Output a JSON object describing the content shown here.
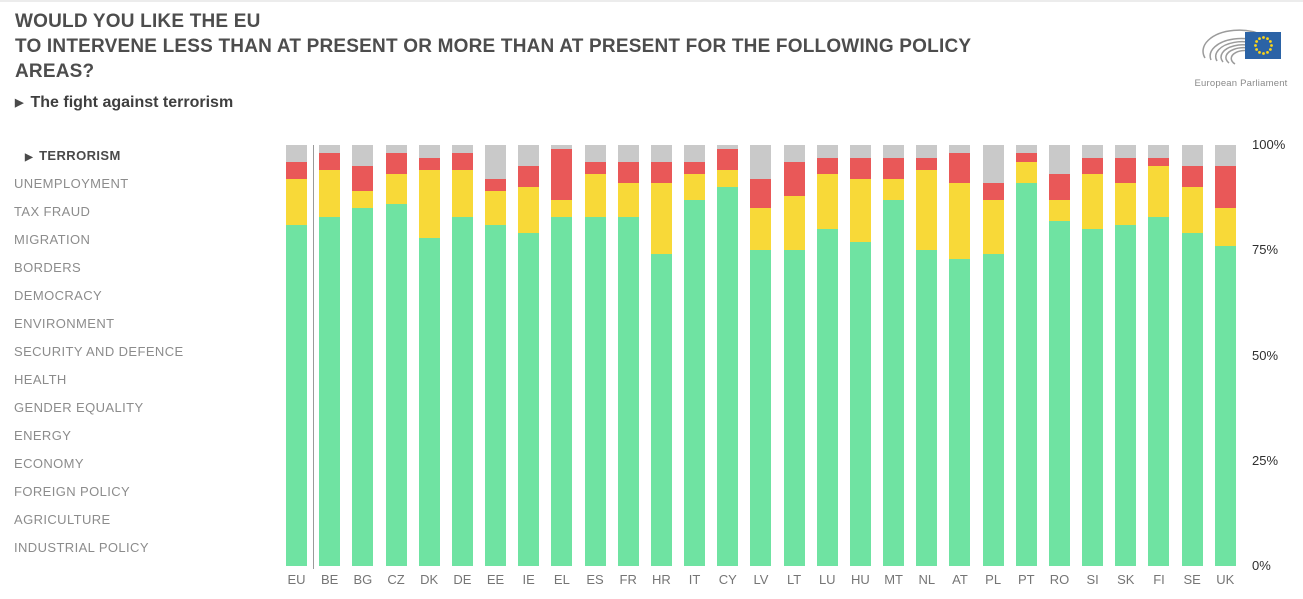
{
  "header": {
    "title_lines": [
      "WOULD YOU LIKE THE EU",
      "TO INTERVENE LESS THAN AT PRESENT OR MORE THAN AT PRESENT FOR THE FOLLOWING POLICY",
      "AREAS?"
    ],
    "subtitle": "The fight against terrorism"
  },
  "logo": {
    "caption": "European Parliament"
  },
  "sidebar": {
    "items": [
      {
        "label": "TERRORISM",
        "active": true
      },
      {
        "label": "UNEMPLOYMENT",
        "active": false
      },
      {
        "label": "TAX FRAUD",
        "active": false
      },
      {
        "label": "MIGRATION",
        "active": false
      },
      {
        "label": "BORDERS",
        "active": false
      },
      {
        "label": "DEMOCRACY",
        "active": false
      },
      {
        "label": "ENVIRONMENT",
        "active": false
      },
      {
        "label": "SECURITY AND DEFENCE",
        "active": false
      },
      {
        "label": "HEALTH",
        "active": false
      },
      {
        "label": "GENDER EQUALITY",
        "active": false
      },
      {
        "label": "ENERGY",
        "active": false
      },
      {
        "label": "ECONOMY",
        "active": false
      },
      {
        "label": "FOREIGN POLICY",
        "active": false
      },
      {
        "label": "AGRICULTURE",
        "active": false
      },
      {
        "label": "INDUSTRIAL POLICY",
        "active": false
      }
    ]
  },
  "chart_data": {
    "type": "bar",
    "stacked": true,
    "unit": "percent",
    "stack_order_bottom_to_top": [
      "green",
      "yellow",
      "red",
      "grey"
    ],
    "categories": [
      "EU",
      "BE",
      "BG",
      "CZ",
      "DK",
      "DE",
      "EE",
      "IE",
      "EL",
      "ES",
      "FR",
      "HR",
      "IT",
      "CY",
      "LV",
      "LT",
      "LU",
      "HU",
      "MT",
      "NL",
      "AT",
      "PL",
      "PT",
      "RO",
      "SI",
      "SK",
      "FI",
      "SE",
      "UK"
    ],
    "series": [
      {
        "name": "green",
        "color": "#6FE3A2",
        "values": [
          81,
          83,
          85,
          86,
          78,
          83,
          81,
          79,
          83,
          83,
          83,
          74,
          87,
          90,
          75,
          75,
          80,
          77,
          87,
          75,
          73,
          74,
          91,
          82,
          80,
          81,
          83,
          79,
          76
        ]
      },
      {
        "name": "yellow",
        "color": "#F8D938",
        "values": [
          11,
          11,
          4,
          7,
          16,
          11,
          8,
          11,
          4,
          10,
          8,
          17,
          6,
          4,
          10,
          13,
          13,
          15,
          5,
          19,
          18,
          13,
          5,
          5,
          13,
          10,
          12,
          11,
          9
        ]
      },
      {
        "name": "red",
        "color": "#E95858",
        "values": [
          4,
          4,
          6,
          5,
          3,
          4,
          3,
          5,
          12,
          3,
          5,
          5,
          3,
          5,
          7,
          8,
          4,
          5,
          5,
          3,
          7,
          4,
          2,
          6,
          4,
          6,
          2,
          5,
          10
        ]
      },
      {
        "name": "grey",
        "color": "#C9C9C9",
        "values": [
          4,
          2,
          5,
          2,
          3,
          2,
          8,
          5,
          1,
          4,
          4,
          4,
          4,
          1,
          8,
          4,
          3,
          3,
          3,
          3,
          2,
          9,
          2,
          7,
          3,
          3,
          3,
          5,
          5
        ]
      }
    ],
    "ylim": [
      0,
      100
    ],
    "yticks": [
      "0%",
      "25%",
      "50%",
      "75%",
      "100%"
    ],
    "ytick_values": [
      0,
      25,
      50,
      75,
      100
    ],
    "legend_position": "none",
    "grid": false,
    "separator_after_category": "EU"
  }
}
